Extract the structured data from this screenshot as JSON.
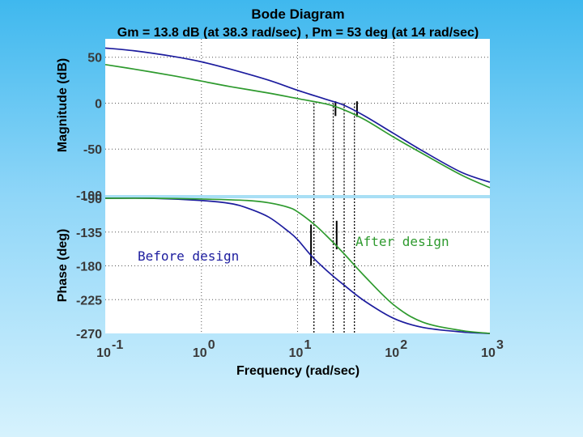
{
  "chart_data": {
    "type": "line",
    "title": "Bode Diagram",
    "subtitle": "Gm = 13.8 dB (at 38.3 rad/sec) ,  Pm = 53 deg (at 14 rad/sec)",
    "xlabel": "Frequency  (rad/sec)",
    "xscale": "log",
    "xlim": [
      0.1,
      1000
    ],
    "x_ticks": [
      {
        "base": "10",
        "exp": "-1",
        "value": 0.1
      },
      {
        "base": "10",
        "exp": "0",
        "value": 1
      },
      {
        "base": "10",
        "exp": "1",
        "value": 10
      },
      {
        "base": "10",
        "exp": "2",
        "value": 100
      },
      {
        "base": "10",
        "exp": "3",
        "value": 1000
      }
    ],
    "grid": true,
    "panels": [
      {
        "id": "magnitude",
        "ylabel": "Magnitude (dB)",
        "ylim": [
          -100,
          70
        ],
        "y_ticks": [
          "50",
          "0",
          "-50",
          "-100"
        ],
        "y_tick_values": [
          50,
          0,
          -50,
          -100
        ],
        "series": [
          {
            "color": "#1c1c9e",
            "x": [
              0.1,
              0.2,
              0.5,
              1,
              2,
              5,
              10,
              20,
              30,
              50,
              100,
              200,
              500,
              1000
            ],
            "y": [
              60,
              57,
              51,
              45,
              37,
              25,
              14,
              4,
              -2,
              -14,
              -33,
              -52,
              -75,
              -86
            ]
          },
          {
            "color": "#2e9a2e",
            "x": [
              0.1,
              0.2,
              0.5,
              1,
              2,
              5,
              10,
              20,
              30,
              50,
              100,
              200,
              500,
              1000
            ],
            "y": [
              42,
              37,
              30,
              24,
              18,
              11,
              5,
              -1,
              -7,
              -18,
              -37,
              -55,
              -78,
              -92
            ]
          }
        ],
        "markers": [
          {
            "x": 14.8,
            "y1": 0,
            "y2": -100,
            "style": "dotted"
          },
          {
            "x": 23.5,
            "y1": 0,
            "y2": -100,
            "style": "dotted"
          },
          {
            "x": 30.5,
            "y1": 0,
            "y2": -100,
            "style": "dotted"
          },
          {
            "x": 39.0,
            "y1": 0,
            "y2": -100,
            "style": "dotted"
          },
          {
            "x": 24.8,
            "y1": 2,
            "y2": -14,
            "style": "solid"
          },
          {
            "x": 41.5,
            "y1": 2,
            "y2": -15,
            "style": "solid"
          }
        ]
      },
      {
        "id": "phase",
        "ylabel": "Phase (deg)",
        "ylim": [
          -270,
          -90
        ],
        "y_ticks": [
          "-90",
          "-135",
          "-180",
          "-225",
          "-270"
        ],
        "y_tick_values": [
          -90,
          -135,
          -180,
          -225,
          -270
        ],
        "series": [
          {
            "color": "#1c1c9e",
            "x": [
              0.1,
              0.3,
              1,
              2,
              3,
              5,
              8,
              10,
              14,
              20,
              30,
              50,
              100,
              200,
              500,
              1000
            ],
            "y": [
              -90,
              -90,
              -93,
              -97,
              -103,
              -115,
              -134,
              -145,
              -167,
              -186,
              -205,
              -227,
              -250,
              -262,
              -268,
              -270
            ]
          },
          {
            "color": "#2e9a2e",
            "x": [
              0.1,
              0.3,
              1,
              3,
              5,
              8,
              10,
              15,
              20,
              30,
              50,
              100,
              200,
              500,
              1000
            ],
            "y": [
              -90,
              -90,
              -91,
              -93,
              -96,
              -102,
              -108,
              -125,
              -140,
              -163,
              -194,
              -232,
              -255,
              -266,
              -270
            ]
          }
        ],
        "markers": [
          {
            "x": 14.8,
            "y1": -90,
            "y2": -270,
            "style": "dotted"
          },
          {
            "x": 23.5,
            "y1": -90,
            "y2": -270,
            "style": "dotted"
          },
          {
            "x": 30.5,
            "y1": -90,
            "y2": -270,
            "style": "dotted"
          },
          {
            "x": 39.0,
            "y1": -90,
            "y2": -270,
            "style": "dotted"
          },
          {
            "x": 13.8,
            "y1": -125,
            "y2": -180,
            "style": "solid"
          },
          {
            "x": 25.5,
            "y1": -120,
            "y2": -158,
            "style": "solid"
          }
        ]
      }
    ],
    "annotations": [
      {
        "text": "Before design",
        "color": "#1c1c9e"
      },
      {
        "text": "After design",
        "color": "#2e9a2e"
      }
    ]
  }
}
